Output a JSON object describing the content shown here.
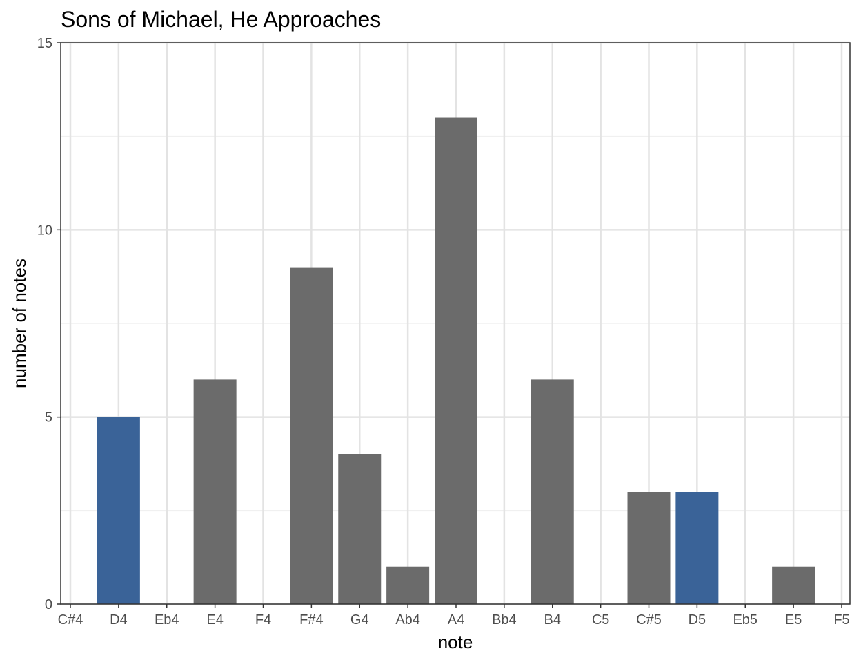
{
  "chart_data": {
    "type": "bar",
    "title": "Sons of Michael, He Approaches",
    "xlabel": "note",
    "ylabel": "number of notes",
    "categories": [
      "C#4",
      "D4",
      "Eb4",
      "E4",
      "F4",
      "F#4",
      "G4",
      "Ab4",
      "A4",
      "Bb4",
      "B4",
      "C5",
      "C#5",
      "D5",
      "Eb5",
      "E5",
      "F5"
    ],
    "values": [
      0,
      5,
      0,
      6,
      0,
      9,
      4,
      1,
      13,
      0,
      6,
      0,
      3,
      3,
      0,
      1,
      0
    ],
    "highlighted": [
      "D4",
      "D5"
    ],
    "ylim": [
      0,
      15
    ],
    "yticks": [
      0,
      5,
      10,
      15
    ],
    "grid": true,
    "colors": {
      "default_bar": "#6b6b6b",
      "highlight_bar": "#3a6398",
      "grid_major": "#e3e3e3",
      "grid_minor": "#f0f0f0",
      "panel_border": "#333333"
    }
  }
}
